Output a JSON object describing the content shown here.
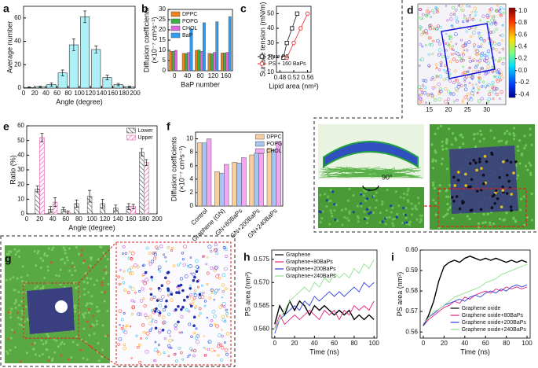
{
  "chart_data": [
    {
      "type": "bar",
      "panel": "a",
      "xlabel": "Angle (degree)",
      "ylabel": "Average number",
      "color": "#aef0f8",
      "x": [
        10,
        30,
        50,
        70,
        90,
        110,
        130,
        150,
        170,
        190
      ],
      "values": [
        0.5,
        1,
        3,
        13,
        37,
        61,
        33,
        9,
        3,
        1
      ],
      "errors": [
        0.5,
        0.5,
        1.5,
        2.5,
        5,
        5,
        3,
        2,
        1,
        0.5
      ],
      "xlim": [
        0,
        200
      ],
      "xticks": [
        0,
        20,
        40,
        60,
        80,
        100,
        120,
        140,
        160,
        180,
        200
      ],
      "ylim": [
        0,
        70
      ],
      "yticks": [
        0,
        20,
        40,
        60
      ]
    },
    {
      "type": "grouped_bar",
      "panel": "b",
      "xlabel": "BaP number",
      "ylabel": [
        "Diffusion coefficients",
        "(×10⁻⁷ cm²s⁻¹)"
      ],
      "categories": [
        "0",
        "40",
        "80",
        "120",
        "160"
      ],
      "legend": "upper left",
      "series": [
        {
          "name": "DPPC",
          "color": "#f07f1a",
          "values": [
            9.5,
            8.5,
            10,
            8.5,
            8.7
          ]
        },
        {
          "name": "POPG",
          "color": "#3cb043",
          "values": [
            9.5,
            8.5,
            10.2,
            8.3,
            8.7
          ]
        },
        {
          "name": "CHOL",
          "color": "#e066e0",
          "values": [
            10,
            9,
            9.5,
            9,
            9
          ]
        },
        {
          "name": "BaP",
          "color": "#2a9df4",
          "values": [
            null,
            20.5,
            23.5,
            24,
            26.5
          ]
        }
      ],
      "ylim": [
        0,
        30
      ],
      "yticks": [
        0,
        5,
        10,
        15,
        20,
        25,
        30
      ]
    },
    {
      "type": "line",
      "panel": "c",
      "xlabel": "Lipid area (nm²)",
      "ylabel": "Surface tension (mN/m)",
      "legend": "lower right",
      "series": [
        {
          "name": "Pure PS",
          "color": "#333333",
          "marker": "square",
          "x": [
            0.49,
            0.5,
            0.515,
            0.53
          ],
          "values": [
            20,
            30,
            40,
            50
          ]
        },
        {
          "name": "PS + 160 BaPs",
          "color": "#f04040",
          "marker": "circle",
          "x": [
            0.5,
            0.52,
            0.54,
            0.56
          ],
          "values": [
            20,
            30,
            40,
            50
          ]
        }
      ],
      "xlim": [
        0.47,
        0.57
      ],
      "xticks": [
        0.48,
        0.52,
        0.56
      ],
      "ylim": [
        10,
        55
      ],
      "yticks": [
        10,
        20,
        30,
        40,
        50
      ]
    },
    {
      "type": "image",
      "panel": "d",
      "annotation": "90°",
      "xlim": [
        12,
        35
      ],
      "xticks": [
        15,
        20,
        25,
        30
      ],
      "clim": [
        -0.45,
        1.05
      ],
      "cticks": [
        {
          "value": 1,
          "label": "1.0"
        },
        0.8,
        0.6,
        0.4,
        0.2,
        {
          "value": 0,
          "label": "0.0"
        },
        -0.2,
        -0.4
      ]
    },
    {
      "type": "grouped_bar",
      "panel": "e",
      "xlabel": "Angle (degree)",
      "ylabel": "Ratio (%)",
      "legend": "upper right",
      "hatch": true,
      "x": [
        20,
        40,
        60,
        80,
        100,
        120,
        140,
        160,
        180
      ],
      "series": [
        {
          "name": "Lower",
          "color": "#333333",
          "values": [
            17,
            3,
            3,
            7,
            12,
            7,
            4,
            5,
            42
          ],
          "errors": [
            2,
            2,
            1.5,
            2.5,
            4,
            3,
            2,
            2,
            2.5
          ]
        },
        {
          "name": "Upper",
          "color": "#e0409a",
          "values": [
            52,
            8,
            1,
            null,
            null,
            null,
            null,
            5,
            35
          ],
          "errors": [
            3,
            3,
            1,
            null,
            null,
            null,
            null,
            1.5,
            2
          ]
        }
      ],
      "xlim": [
        0,
        200
      ],
      "xticks": [
        0,
        20,
        40,
        60,
        80,
        100,
        120,
        140,
        160,
        180,
        200
      ],
      "ylim": [
        0,
        60
      ],
      "yticks": [
        0,
        10,
        20,
        30,
        40,
        50,
        60
      ]
    },
    {
      "type": "grouped_bar",
      "panel": "f",
      "ylabel": [
        "Diffusion coefficients",
        "(×10⁻⁷ cm²s⁻¹)"
      ],
      "legend": "upper right",
      "categories": [
        "Control",
        "Graphene (GN)",
        "GN+80BaPs",
        "GN+200BaPs",
        "GN+240BaPs"
      ],
      "series": [
        {
          "name": "DPPC",
          "color": "#f8d0a0",
          "values": [
            9.4,
            5.1,
            6.5,
            7.6,
            8.6
          ]
        },
        {
          "name": "POPG",
          "color": "#a8c4f0",
          "values": [
            9.4,
            4.9,
            6.4,
            7.9,
            8.4
          ]
        },
        {
          "name": "CHOL",
          "color": "#f0a8f0",
          "values": [
            10,
            6.2,
            7.2,
            7.8,
            9.6
          ]
        }
      ],
      "ylim": [
        0,
        11
      ],
      "yticks": [
        0,
        2,
        4,
        6,
        8,
        10
      ]
    },
    {
      "type": "image",
      "panel": "g"
    },
    {
      "type": "line",
      "panel": "h",
      "xlabel": "Time (ns)",
      "ylabel": "PS area (nm²)",
      "legend": "upper left",
      "x": [
        0,
        5,
        10,
        15,
        20,
        25,
        30,
        35,
        40,
        45,
        50,
        55,
        60,
        65,
        70,
        75,
        80,
        85,
        90,
        95,
        100
      ],
      "series": [
        {
          "name": "Graphene",
          "color": "#000000",
          "values": [
            0.561,
            0.565,
            0.563,
            0.566,
            0.564,
            0.566,
            0.565,
            0.563,
            0.565,
            0.564,
            0.565,
            0.564,
            0.563,
            0.564,
            0.563,
            0.564,
            0.562,
            0.563,
            0.562,
            0.563,
            0.562
          ]
        },
        {
          "name": "Graphene+80BaPs",
          "color": "#e0207a",
          "values": [
            0.56,
            0.563,
            0.561,
            0.562,
            0.563,
            0.562,
            0.563,
            0.564,
            0.563,
            0.562,
            0.564,
            0.563,
            0.564,
            0.562,
            0.564,
            0.563,
            0.565,
            0.564,
            0.565,
            0.564,
            0.566
          ]
        },
        {
          "name": "Graphene+200BaPs",
          "color": "#3040e0",
          "values": [
            0.559,
            0.562,
            0.563,
            0.564,
            0.565,
            0.564,
            0.566,
            0.565,
            0.567,
            0.566,
            0.567,
            0.568,
            0.567,
            0.568,
            0.567,
            0.568,
            0.569,
            0.568,
            0.57,
            0.569,
            0.57
          ]
        },
        {
          "name": "Graphene+240BaPs",
          "color": "#8ee08e",
          "values": [
            0.56,
            0.562,
            0.564,
            0.566,
            0.567,
            0.568,
            0.569,
            0.568,
            0.57,
            0.569,
            0.571,
            0.57,
            0.572,
            0.571,
            0.572,
            0.571,
            0.573,
            0.572,
            0.574,
            0.573,
            0.575
          ]
        }
      ],
      "xlim": [
        -3,
        103
      ],
      "xticks": [
        0,
        20,
        40,
        60,
        80,
        100
      ],
      "ylim": [
        0.558,
        0.577
      ],
      "yticks": [
        {
          "value": 0.56,
          "label": "0.560"
        },
        0.565,
        {
          "value": 0.57,
          "label": "0.570"
        },
        0.575
      ]
    },
    {
      "type": "line",
      "panel": "i",
      "xlabel": "Time (ns)",
      "ylabel": "PS area (nm²)",
      "legend": "lower right",
      "x": [
        0,
        5,
        10,
        15,
        20,
        25,
        30,
        35,
        40,
        45,
        50,
        55,
        60,
        65,
        70,
        75,
        80,
        85,
        90,
        95,
        100
      ],
      "series": [
        {
          "name": "Graphene oxide",
          "color": "#000000",
          "values": [
            0.563,
            0.568,
            0.575,
            0.585,
            0.592,
            0.594,
            0.595,
            0.594,
            0.596,
            0.597,
            0.596,
            0.595,
            0.596,
            0.595,
            0.596,
            0.595,
            0.594,
            0.595,
            0.594,
            0.595,
            0.594
          ]
        },
        {
          "name": "Graphene oxide+80BaPs",
          "color": "#e0207a",
          "values": [
            0.563,
            0.566,
            0.568,
            0.57,
            0.572,
            0.573,
            0.575,
            0.574,
            0.577,
            0.576,
            0.578,
            0.579,
            0.58,
            0.579,
            0.581,
            0.58,
            0.582,
            0.581,
            0.582,
            0.581,
            0.582
          ]
        },
        {
          "name": "Graphene oxide+200BaPs",
          "color": "#3040e0",
          "values": [
            0.563,
            0.567,
            0.569,
            0.571,
            0.573,
            0.574,
            0.575,
            0.576,
            0.575,
            0.577,
            0.578,
            0.577,
            0.579,
            0.58,
            0.579,
            0.581,
            0.58,
            0.582,
            0.583,
            0.582,
            0.583
          ]
        },
        {
          "name": "Graphene oxide+240BaPs",
          "color": "#8ee08e",
          "values": [
            0.564,
            0.567,
            0.57,
            0.571,
            0.573,
            0.575,
            0.577,
            0.578,
            0.579,
            0.58,
            0.581,
            0.582,
            0.584,
            0.585,
            0.586,
            0.588,
            0.589,
            0.59,
            0.591,
            0.592,
            0.593
          ]
        }
      ],
      "xlim": [
        -3,
        103
      ],
      "xticks": [
        0,
        20,
        40,
        60,
        80,
        100
      ],
      "ylim": [
        0.557,
        0.6
      ],
      "yticks": [
        0.56,
        0.57,
        0.58,
        0.59,
        {
          "value": 0.6,
          "label": "0.60"
        }
      ]
    }
  ]
}
